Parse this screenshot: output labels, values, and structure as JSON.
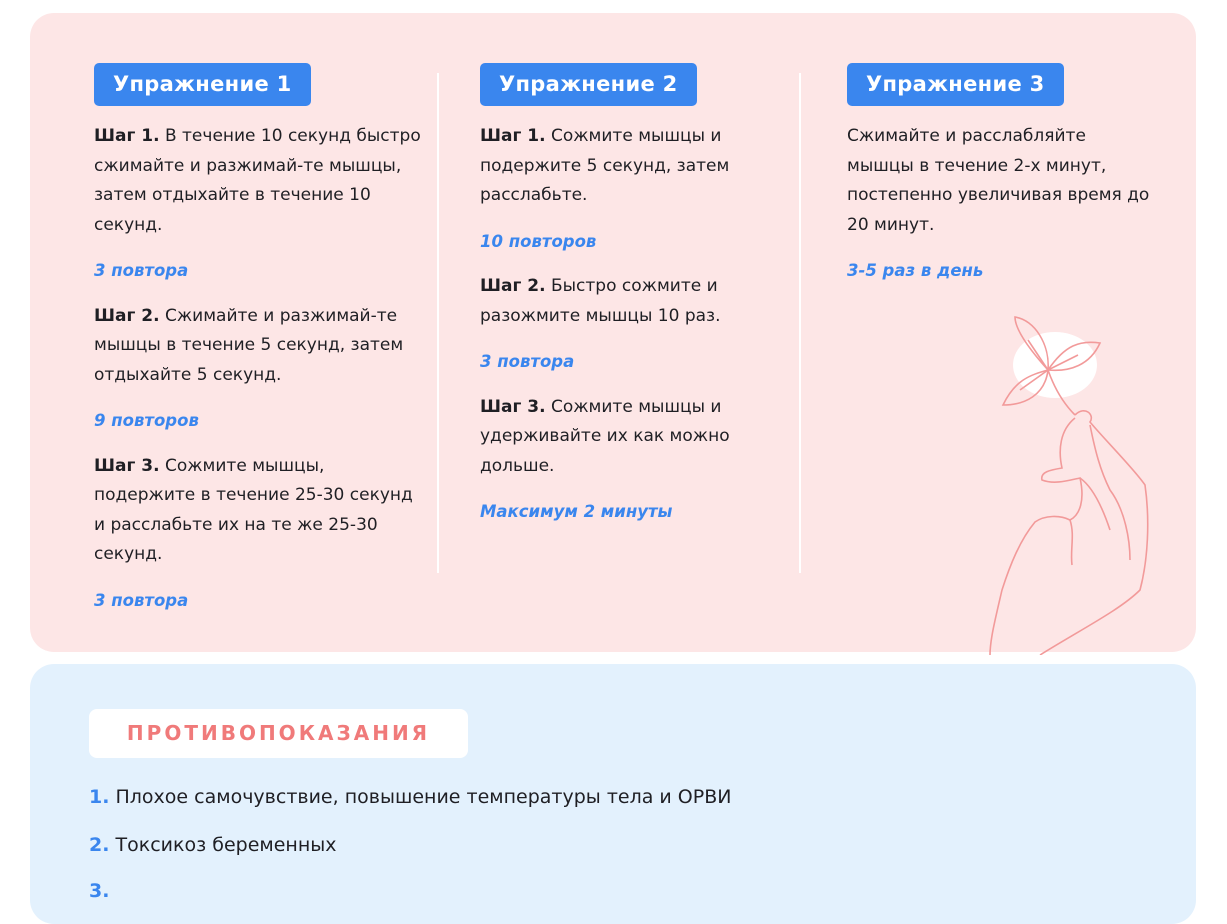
{
  "exercises": [
    {
      "title": "Упражнение 1",
      "steps": [
        {
          "label": "Шаг 1.",
          "text": " В течение 10 секунд быстро сжимайте и разжимай-те мышцы, затем отдыхайте в течение 10 секунд.",
          "reps": "3 повтора"
        },
        {
          "label": "Шаг 2.",
          "text": " Сжимайте и разжимай-те мышцы в течение 5 секунд, затем отдыхайте 5 секунд.",
          "reps": "9 повторов"
        },
        {
          "label": "Шаг 3.",
          "text": " Сожмите мышцы, подержите в течение 25-30 секунд и расслабьте их на те же 25-30 секунд.",
          "reps": "3 повтора"
        }
      ]
    },
    {
      "title": "Упражнение 2",
      "steps": [
        {
          "label": "Шаг 1.",
          "text": " Сожмите мышцы и подержите 5 секунд, затем расслабьте.",
          "reps": "10 повторов"
        },
        {
          "label": "Шаг 2.",
          "text": " Быстро сожмите и разожмите мышцы 10 раз.",
          "reps": "3 повтора"
        },
        {
          "label": "Шаг 3.",
          "text": " Сожмите мышцы и удерживайте их как можно дольше.",
          "reps": "Максимум 2 минуты"
        }
      ]
    },
    {
      "title": "Упражнение 3",
      "text": "Сжимайте и расслабляйте мышцы в течение 2-х минут, постепенно увеличивая время до 20 минут.",
      "reps": "3-5 раз в день"
    }
  ],
  "contraindications": {
    "title": "ПРОТИВОПОКАЗАНИЯ",
    "items": [
      {
        "num": "1.",
        "text": "Плохое самочувствие, повышение температуры тела и ОРВИ"
      },
      {
        "num": "2.",
        "text": "Токсикоз беременных"
      },
      {
        "num": "3.",
        "text": ""
      }
    ]
  },
  "colors": {
    "accent": "#3a86ee",
    "pink_bg": "#fde6e6",
    "blue_bg": "#e3f1fd",
    "heading_red": "#f07a7a",
    "illustration": "#f29a9a"
  },
  "illustration": "hand-holding-flower-icon"
}
